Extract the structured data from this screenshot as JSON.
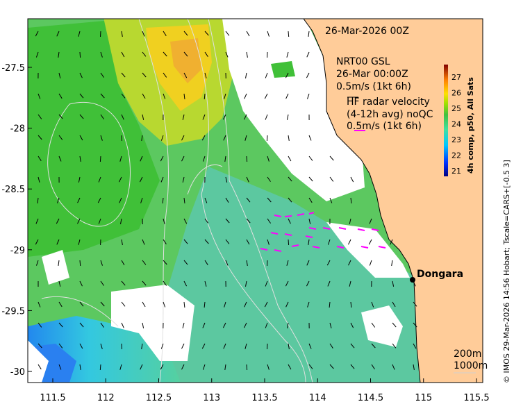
{
  "map": {
    "timestamp": "26-Mar-2026 00Z",
    "model_label": "NRT00 GSL",
    "model_time": "26-Mar 00:00Z",
    "model_scale": "0.5m/s (1kt 6h)",
    "radar_label": "HF radar velocity",
    "radar_avg": "(4-12h avg) noQC",
    "radar_scale": "0.5m/s (1kt 6h)",
    "place_name": "Dongara",
    "contour_200": "200m",
    "contour_1000": "1000m",
    "credit": "© IMOS 29-Mar-2026 14:56 Hobart; Tscale=CARS+[-0.5 3]",
    "colors": {
      "land": "#ffcc99",
      "radar_arrow": "#ff00ff",
      "model_arrow": "#000000"
    },
    "icons": [
      "location-marker-icon"
    ]
  },
  "axes": {
    "x_ticks": [
      "111.5",
      "112",
      "112.5",
      "113",
      "113.5",
      "114",
      "114.5",
      "115",
      "115.5"
    ],
    "y_ticks": [
      "-27.5",
      "-28",
      "-28.5",
      "-29",
      "-29.5",
      "-30"
    ]
  },
  "colorbar": {
    "title": "4h comp, p50, All Sats",
    "ticks": [
      "27",
      "26",
      "25",
      "24",
      "23",
      "22",
      "21"
    ]
  }
}
